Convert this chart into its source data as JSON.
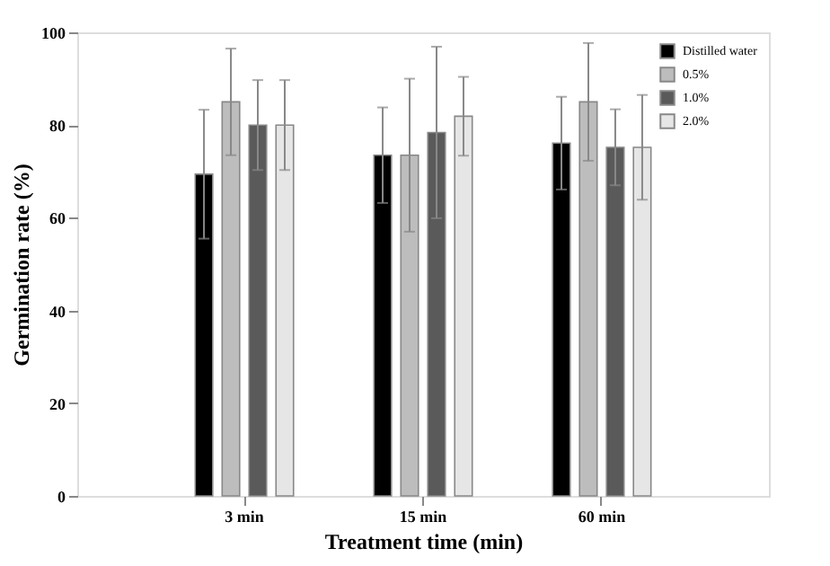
{
  "chart_data": {
    "type": "bar",
    "xlabel": "Treatment time (min)",
    "ylabel": "Germination rate (%)",
    "categories": [
      "3 min",
      "15 min",
      "60 min"
    ],
    "series": [
      {
        "name": "Distilled water",
        "color": "#000000",
        "values": [
          69.4,
          73.5,
          76.1
        ],
        "errors": [
          13.9,
          10.3,
          10.0
        ]
      },
      {
        "name": "0.5%",
        "color": "#bdbdbd",
        "values": [
          85.0,
          73.5,
          85.0
        ],
        "errors": [
          11.5,
          16.5,
          12.7
        ]
      },
      {
        "name": "1.0%",
        "color": "#5a5a5a",
        "values": [
          80.0,
          78.4,
          75.2
        ],
        "errors": [
          9.7,
          18.5,
          8.2
        ]
      },
      {
        "name": "2.0%",
        "color": "#e6e6e6",
        "values": [
          80.0,
          81.9,
          75.2
        ],
        "errors": [
          9.7,
          8.5,
          11.3
        ]
      }
    ],
    "ylim": [
      0,
      100
    ],
    "yticks": [
      0,
      20,
      40,
      60,
      80,
      100
    ],
    "grid": false,
    "legend": "top right"
  }
}
